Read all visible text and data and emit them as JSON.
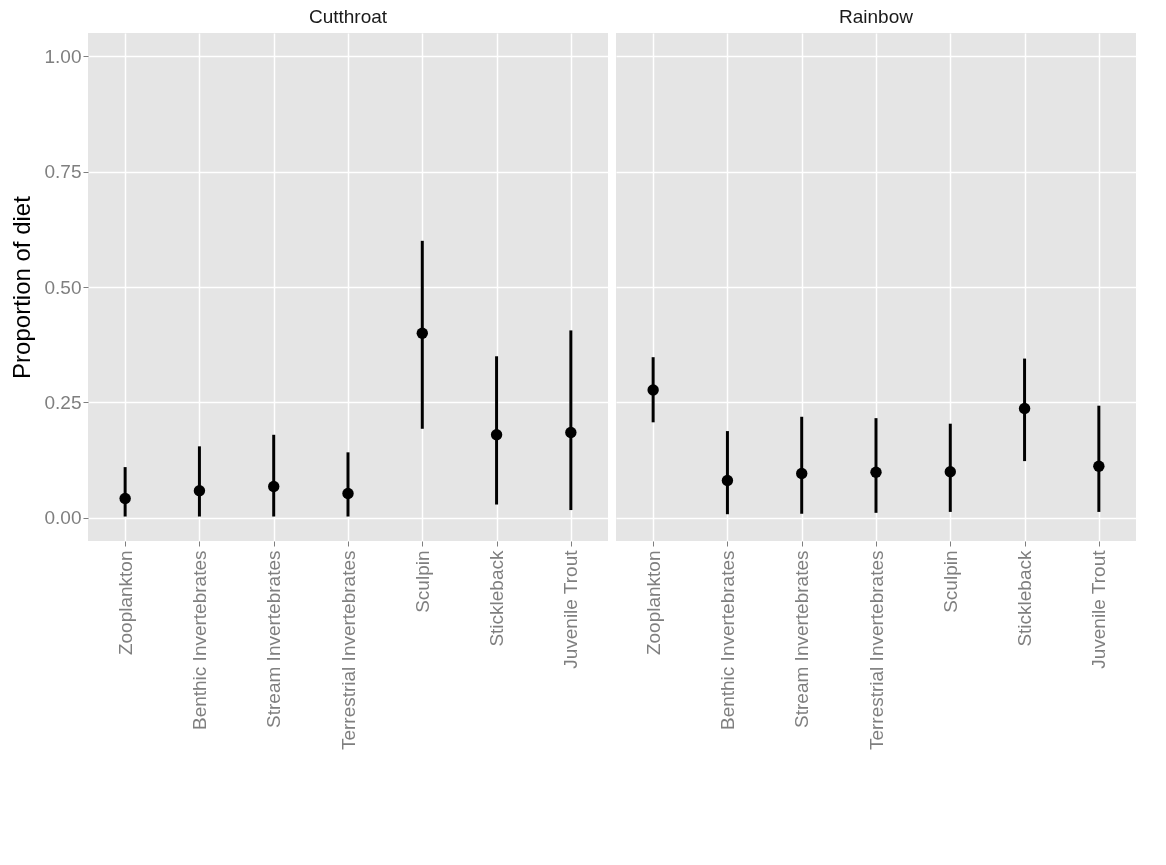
{
  "chart_data": [
    {
      "type": "scatter",
      "title": "Cutthroat",
      "ylabel": "Proportion of diet",
      "categories": [
        "Zooplankton",
        "Benthic Invertebrates",
        "Stream Invertebrates",
        "Terrestrial Invertebrates",
        "Sculpin",
        "Stickleback",
        "Juvenile Trout"
      ],
      "values": [
        0.042,
        0.059,
        0.068,
        0.053,
        0.4,
        0.18,
        0.185
      ],
      "errors": [
        [
          0.003,
          0.11
        ],
        [
          0.003,
          0.155
        ],
        [
          0.003,
          0.18
        ],
        [
          0.003,
          0.142
        ],
        [
          0.193,
          0.6
        ],
        [
          0.029,
          0.35
        ],
        [
          0.017,
          0.406
        ]
      ],
      "color": "#000000",
      "marker": "circle",
      "grid": true,
      "ylim": [
        -0.05,
        1.05
      ],
      "yticks": [
        {
          "value": 0,
          "label": "0.00"
        },
        {
          "value": 0.25,
          "label": "0.25"
        },
        {
          "value": 0.5,
          "label": "0.50"
        },
        {
          "value": 0.75,
          "label": "0.75"
        },
        {
          "value": 1,
          "label": "1.00"
        }
      ]
    },
    {
      "type": "scatter",
      "title": "Rainbow",
      "categories": [
        "Zooplankton",
        "Benthic Invertebrates",
        "Stream Invertebrates",
        "Terrestrial Invertebrates",
        "Sculpin",
        "Stickleback",
        "Juvenile Trout"
      ],
      "values": [
        0.277,
        0.081,
        0.096,
        0.099,
        0.1,
        0.237,
        0.112
      ],
      "errors": [
        [
          0.207,
          0.348
        ],
        [
          0.008,
          0.188
        ],
        [
          0.009,
          0.219
        ],
        [
          0.011,
          0.216
        ],
        [
          0.013,
          0.204
        ],
        [
          0.123,
          0.345
        ],
        [
          0.013,
          0.243
        ]
      ],
      "color": "#000000",
      "marker": "circle",
      "grid": true,
      "tick_labels": "x",
      "ylim": [
        -0.05,
        1.05
      ],
      "yticks": [
        0,
        0.25,
        0.5,
        0.75,
        1
      ]
    }
  ]
}
